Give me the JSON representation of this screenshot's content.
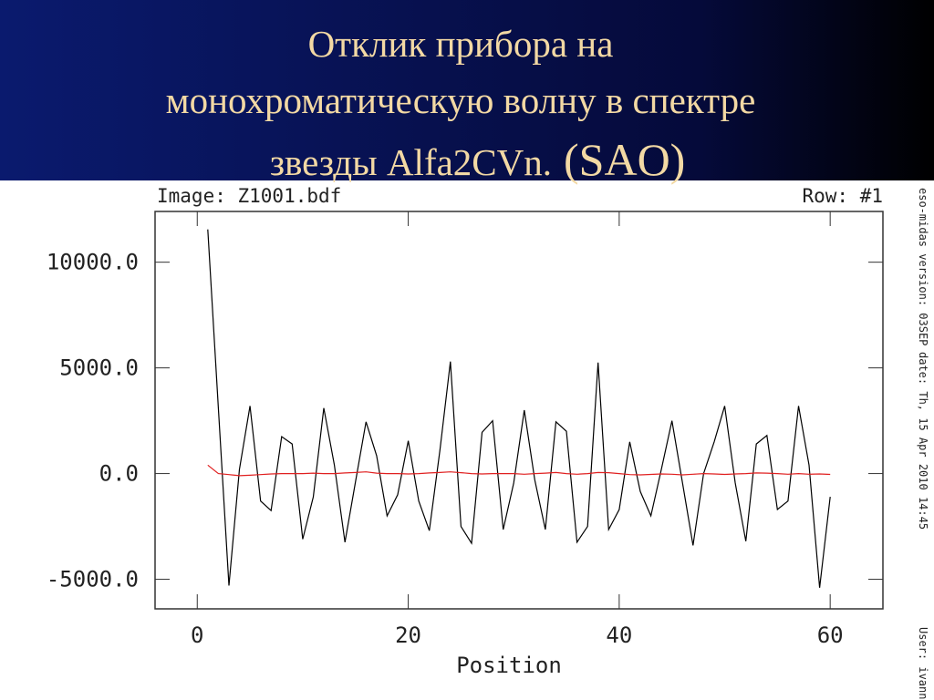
{
  "chart_data": {
    "type": "line",
    "title_lines": [
      "Отклик прибора на",
      "монохроматическую волну в спектре",
      "звезды Alfa2CVn."
    ],
    "title_note": "(SAO)",
    "header_left": "Image: Z1001.bdf",
    "header_right": "Row: #1",
    "side_notes": [
      "eso-midas version: 03SEP",
      "date: Th, 15 Apr 2010 14:45",
      "User: ivann"
    ],
    "x_label": "Position",
    "x": [
      1,
      2,
      3,
      4,
      5,
      6,
      7,
      8,
      9,
      10,
      11,
      12,
      13,
      14,
      15,
      16,
      17,
      18,
      19,
      20,
      21,
      22,
      23,
      24,
      25,
      26,
      27,
      28,
      29,
      30,
      31,
      32,
      33,
      34,
      35,
      36,
      37,
      38,
      39,
      40,
      41,
      42,
      43,
      44,
      45,
      46,
      47,
      48,
      49,
      50,
      51,
      52,
      53,
      54,
      55,
      56,
      57,
      58,
      59,
      60
    ],
    "series": [
      {
        "color": "#000000",
        "values": [
          11550,
          3100,
          -5300,
          200,
          3200,
          -1300,
          -1750,
          1750,
          1400,
          -3100,
          -1100,
          3100,
          400,
          -3250,
          -400,
          2450,
          850,
          -2000,
          -1000,
          1550,
          -1300,
          -2700,
          1100,
          5300,
          -2500,
          -3300,
          1950,
          2500,
          -2650,
          -450,
          3000,
          -300,
          -2650,
          2450,
          2000,
          -3250,
          -2500,
          5250,
          -2650,
          -1700,
          1500,
          -850,
          -2000,
          200,
          2500,
          -450,
          -3400,
          0,
          1500,
          3200,
          -450,
          -3200,
          1400,
          1800,
          -1700,
          -1300,
          3200,
          400,
          -5400,
          -1100
        ]
      },
      {
        "color": "#e02020",
        "values": [
          400,
          0,
          -50,
          -100,
          -80,
          -50,
          -20,
          0,
          0,
          0,
          20,
          0,
          0,
          30,
          50,
          80,
          20,
          0,
          0,
          -20,
          0,
          30,
          50,
          80,
          40,
          0,
          -20,
          0,
          0,
          0,
          -30,
          0,
          20,
          50,
          0,
          -30,
          0,
          50,
          40,
          0,
          -50,
          -60,
          -40,
          -20,
          -30,
          -60,
          -30,
          0,
          -20,
          -40,
          -20,
          0,
          30,
          20,
          0,
          -30,
          0,
          -30,
          -20,
          -40
        ]
      }
    ],
    "xlim": [
      -4,
      65
    ],
    "xticks": [
      0,
      20,
      40,
      60
    ],
    "ylim": [
      -6400,
      12400
    ],
    "yticks": [
      {
        "value": -5000,
        "label": "-5000.0"
      },
      {
        "value": 0,
        "label": "0.0"
      },
      {
        "value": 5000,
        "label": "5000.0"
      },
      {
        "value": 10000,
        "label": "10000.0"
      }
    ],
    "grid": false
  }
}
